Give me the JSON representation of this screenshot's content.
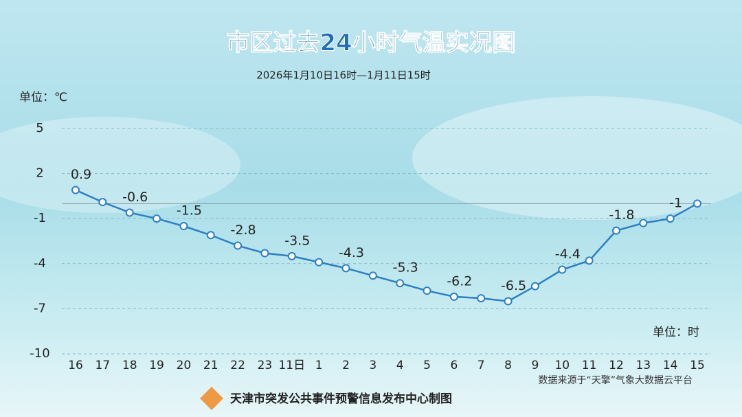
{
  "chart_data": {
    "type": "line",
    "title": "市区过去24小时气温实况图",
    "subtitle": "2026年1月10日16时—1月11日15时",
    "y_unit": "单位：℃",
    "x_unit": "单位：时",
    "source": "数据来源于“天擎”气象大数据云平台",
    "footer": "天津市突发公共事件预警信息发布中心制图",
    "categories": [
      "16",
      "17",
      "18",
      "19",
      "20",
      "21",
      "22",
      "23",
      "11日",
      "1",
      "2",
      "3",
      "4",
      "5",
      "6",
      "7",
      "8",
      "9",
      "10",
      "11",
      "12",
      "13",
      "14",
      "15"
    ],
    "series": [
      {
        "name": "气温",
        "color": "#2b7fc4",
        "values": [
          0.9,
          0.1,
          -0.6,
          -1.0,
          -1.5,
          -2.1,
          -2.8,
          -3.3,
          -3.5,
          -3.9,
          -4.3,
          -4.8,
          -5.3,
          -5.8,
          -6.2,
          -6.3,
          -6.5,
          -5.5,
          -4.4,
          -3.8,
          -1.8,
          -1.3,
          -1,
          0
        ],
        "value_labels": [
          "0.9",
          null,
          "-0.6",
          null,
          "-1.5",
          null,
          "-2.8",
          null,
          "-3.5",
          null,
          "-4.3",
          null,
          "-5.3",
          null,
          "-6.2",
          null,
          "-6.5",
          null,
          "-4.4",
          null,
          "-1.8",
          null,
          "-1",
          null
        ]
      }
    ],
    "ylim": [
      -10,
      5
    ],
    "yticks": [
      5,
      2,
      -1,
      -4,
      -7,
      -10
    ],
    "grid": true
  }
}
